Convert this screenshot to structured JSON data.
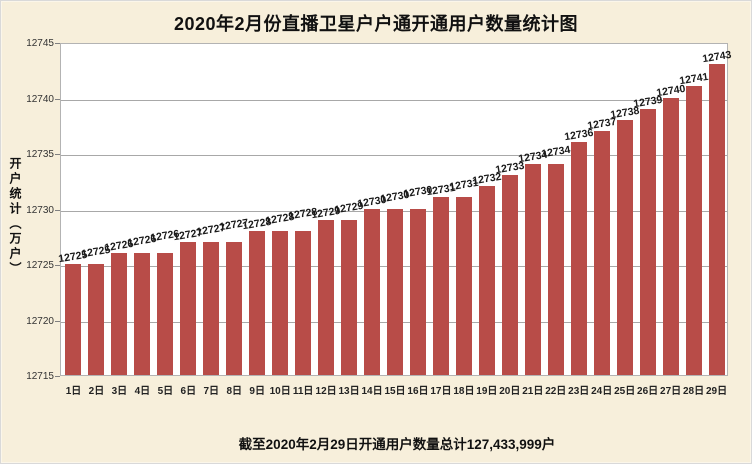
{
  "chart_data": {
    "type": "bar",
    "title": "2020年2月份直播卫星户户通开通用户数量统计图",
    "ylabel": "开户统计（万户）",
    "xlabel": "",
    "categories": [
      "1日",
      "2日",
      "3日",
      "4日",
      "5日",
      "6日",
      "7日",
      "8日",
      "9日",
      "10日",
      "11日",
      "12日",
      "13日",
      "14日",
      "15日",
      "16日",
      "17日",
      "18日",
      "19日",
      "20日",
      "21日",
      "22日",
      "23日",
      "24日",
      "25日",
      "26日",
      "27日",
      "28日",
      "29日"
    ],
    "values": [
      12725,
      12725,
      12726,
      12726,
      12726,
      12727,
      12727,
      12727,
      12728,
      12728,
      12728,
      12729,
      12729,
      12730,
      12730,
      12730,
      12731,
      12731,
      12732,
      12733,
      12734,
      12734,
      12736,
      12737,
      12738,
      12739,
      12740,
      12741,
      12743
    ],
    "ylim": [
      12715,
      12745
    ],
    "yticks": [
      12715,
      12720,
      12725,
      12730,
      12735,
      12740,
      12745
    ],
    "grid": true,
    "legend": null,
    "data_labels": true,
    "footnote": "截至2020年2月29日开通用户数量总计127,433,999户"
  },
  "colors": {
    "bar": "#b84c48",
    "background": "#f7efdb",
    "plot_background": "#ffffff",
    "gridline": "#a8a8a8",
    "text": "#1a1a1a"
  }
}
